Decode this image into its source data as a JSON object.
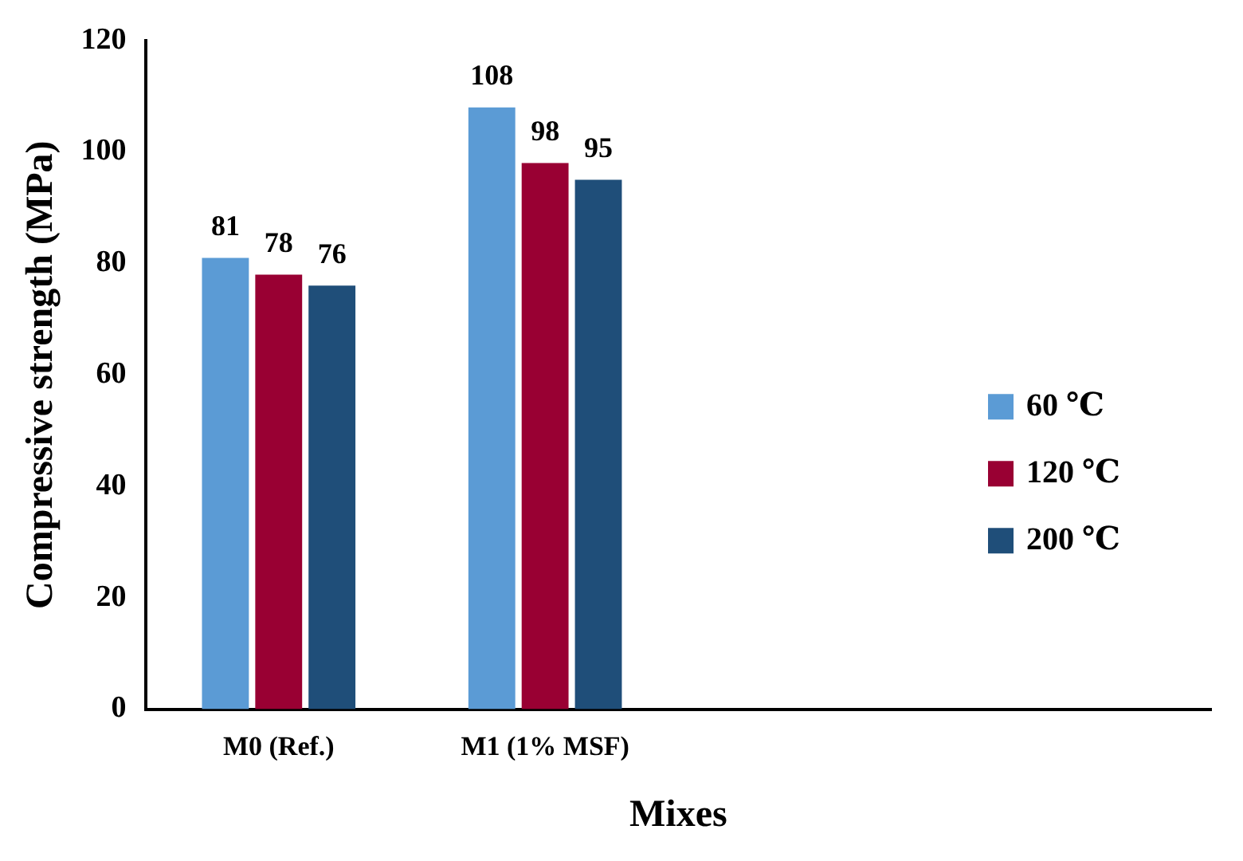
{
  "chart_data": {
    "type": "bar",
    "xlabel": "Mixes",
    "ylabel": "Compressive strength (MPa)",
    "categories": [
      "M0 (Ref.)",
      "M1 (1% MSF)",
      null,
      null
    ],
    "series": [
      {
        "name": "60 ℃",
        "color": "#5b9bd5",
        "values": [
          81,
          108,
          null,
          null
        ]
      },
      {
        "name": "120 ℃",
        "color": "#990033",
        "values": [
          78,
          98,
          null,
          null
        ]
      },
      {
        "name": "200 ℃",
        "color": "#1f4e79",
        "values": [
          76,
          95,
          null,
          null
        ]
      }
    ],
    "ylim": [
      0,
      120
    ],
    "yticks": [
      0,
      20,
      40,
      60,
      80,
      100,
      120
    ],
    "data_labels": true,
    "legend": "right",
    "grid": false
  }
}
